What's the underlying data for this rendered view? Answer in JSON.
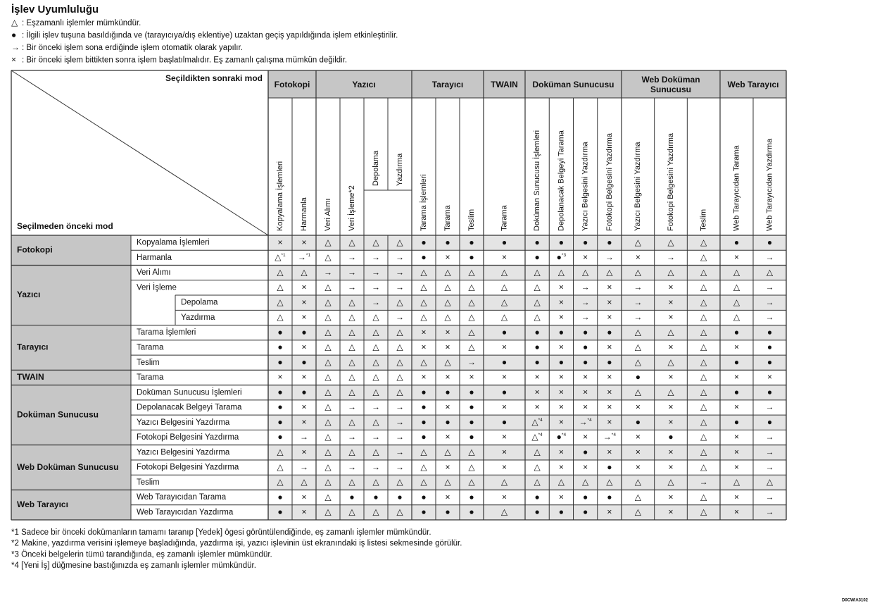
{
  "title": "İşlev Uyumluluğu",
  "legend": [
    {
      "symbol": "△",
      "text": ": Eşzamanlı işlemler mümkündür."
    },
    {
      "symbol": "●",
      "text": ": İlgili işlev tuşuna basıldığında ve (tarayıcıya/dış eklentiye) uzaktan geçiş yapıldığında işlem etkinleştirilir."
    },
    {
      "symbol": "→",
      "text": ": Bir önceki işlem sona erdiğinde işlem otomatik olarak yapılır."
    },
    {
      "symbol": "×",
      "text": ": Bir önceki işlem bittikten sonra işlem başlatılmalıdır. Eş zamanlı çalışma mümkün değildir."
    }
  ],
  "table": {
    "corner_top": "Seçildikten sonraki mod",
    "corner_bottom": "Seçilmeden önceki mod",
    "column_groups": [
      {
        "label": "Fotokopi",
        "columns": [
          "Kopyalama İşlemleri",
          "Harmanla"
        ]
      },
      {
        "label": "Yazıcı",
        "columns": [
          "Veri Alımı",
          {
            "label": "Veri İşleme*2",
            "sub": [
              "Depolama",
              "Yazdırma"
            ]
          }
        ]
      },
      {
        "label": "Tarayıcı",
        "columns": [
          "Tarama İşlemleri",
          "Tarama",
          "Teslim"
        ]
      },
      {
        "label": "TWAIN",
        "columns": [
          "Tarama"
        ]
      },
      {
        "label": "Doküman Sunucusu",
        "columns": [
          "Doküman Sunucusu İşlemleri",
          "Depolanacak Belgeyi Tarama",
          "Yazıcı Belgesini Yazdırma",
          "Fotokopi Belgesini Yazdırma"
        ]
      },
      {
        "label": "Web Doküman Sunucusu",
        "columns": [
          "Yazıcı Belgesini Yazdırma",
          "Fotokopi Belgesini Yazdırma",
          "Teslim"
        ]
      },
      {
        "label": "Web Tarayıcı",
        "columns": [
          "Web Tarayıcıdan Tarama",
          "Web Tarayıcıdan Yazdırma"
        ]
      }
    ],
    "row_groups": [
      {
        "label": "Fotokopi",
        "rows": [
          {
            "label": "Kopyalama İşlemleri",
            "cells": [
              "×",
              "×",
              "△",
              "△",
              "△",
              "△",
              "●",
              "●",
              "●",
              "●",
              "●",
              "●",
              "●",
              "●",
              "△",
              "△",
              "△",
              "●",
              "●"
            ]
          },
          {
            "label": "Harmanla",
            "cells": [
              {
                "symbol": "△",
                "note": "*1"
              },
              {
                "symbol": "→",
                "note": "*1"
              },
              "△",
              "→",
              "→",
              "→",
              "●",
              "×",
              "●",
              "×",
              "●",
              {
                "symbol": "●",
                "note": "*3"
              },
              "×",
              "→",
              "×",
              "→",
              "△",
              "×",
              "→"
            ]
          }
        ]
      },
      {
        "label": "Yazıcı",
        "rows": [
          {
            "label": "Veri Alımı",
            "cells": [
              "△",
              "△",
              "→",
              "→",
              "→",
              "→",
              "△",
              "△",
              "△",
              "△",
              "△",
              "△",
              "△",
              "△",
              "△",
              "△",
              "△",
              "△",
              "△"
            ]
          },
          {
            "label": "Veri İşleme",
            "cells": [
              "△",
              "×",
              "△",
              "→",
              "→",
              "→",
              "△",
              "△",
              "△",
              "△",
              "△",
              "×",
              "→",
              "×",
              "→",
              "×",
              "△",
              "△",
              "→"
            ],
            "sub": [
              {
                "label": "Depolama",
                "cells": [
                  "△",
                  "×",
                  "△",
                  "△",
                  "→",
                  "△",
                  "△",
                  "△",
                  "△",
                  "△",
                  "△",
                  "×",
                  "→",
                  "×",
                  "→",
                  "×",
                  "△",
                  "△",
                  "→"
                ]
              },
              {
                "label": "Yazdırma",
                "cells": [
                  "△",
                  "×",
                  "△",
                  "△",
                  "△",
                  "→",
                  "△",
                  "△",
                  "△",
                  "△",
                  "△",
                  "×",
                  "→",
                  "×",
                  "→",
                  "×",
                  "△",
                  "△",
                  "→"
                ]
              }
            ]
          }
        ]
      },
      {
        "label": "Tarayıcı",
        "rows": [
          {
            "label": "Tarama İşlemleri",
            "cells": [
              "●",
              "●",
              "△",
              "△",
              "△",
              "△",
              "×",
              "×",
              "△",
              "●",
              "●",
              "●",
              "●",
              "●",
              "△",
              "△",
              "△",
              "●",
              "●"
            ]
          },
          {
            "label": "Tarama",
            "cells": [
              "●",
              "×",
              "△",
              "△",
              "△",
              "△",
              "×",
              "×",
              "△",
              "×",
              "●",
              "×",
              "●",
              "×",
              "△",
              "×",
              "△",
              "×",
              "●"
            ]
          },
          {
            "label": "Teslim",
            "cells": [
              "●",
              "●",
              "△",
              "△",
              "△",
              "△",
              "△",
              "△",
              "→",
              "●",
              "●",
              "●",
              "●",
              "●",
              "△",
              "△",
              "△",
              "●",
              "●"
            ]
          }
        ]
      },
      {
        "label": "TWAIN",
        "rows": [
          {
            "label": "Tarama",
            "cells": [
              "×",
              "×",
              "△",
              "△",
              "△",
              "△",
              "×",
              "×",
              "×",
              "×",
              "×",
              "×",
              "×",
              "×",
              "●",
              "×",
              "△",
              "×",
              "×"
            ]
          }
        ]
      },
      {
        "label": "Doküman Sunucusu",
        "rows": [
          {
            "label": "Doküman Sunucusu İşlemleri",
            "cells": [
              "●",
              "●",
              "△",
              "△",
              "△",
              "△",
              "●",
              "●",
              "●",
              "●",
              "×",
              "×",
              "×",
              "×",
              "△",
              "△",
              "△",
              "●",
              "●"
            ]
          },
          {
            "label": "Depolanacak Belgeyi Tarama",
            "cells": [
              "●",
              "×",
              "△",
              "→",
              "→",
              "→",
              "●",
              "×",
              "●",
              "×",
              "×",
              "×",
              "×",
              "×",
              "×",
              "×",
              "△",
              "×",
              "→"
            ]
          },
          {
            "label": "Yazıcı Belgesini Yazdırma",
            "cells": [
              "●",
              "×",
              "△",
              "△",
              "△",
              "→",
              "●",
              "●",
              "●",
              "●",
              {
                "symbol": "△",
                "note": "*4"
              },
              "×",
              {
                "symbol": "→",
                "note": "*4"
              },
              "×",
              "●",
              "×",
              "△",
              "●",
              "●"
            ]
          },
          {
            "label": "Fotokopi Belgesini Yazdırma",
            "cells": [
              "●",
              "→",
              "△",
              "→",
              "→",
              "→",
              "●",
              "×",
              "●",
              "×",
              {
                "symbol": "△",
                "note": "*4"
              },
              {
                "symbol": "●",
                "note": "*4"
              },
              "×",
              {
                "symbol": "→",
                "note": "*4"
              },
              "×",
              "●",
              "△",
              "×",
              "→"
            ]
          }
        ]
      },
      {
        "label": "Web Doküman Sunucusu",
        "rows": [
          {
            "label": "Yazıcı Belgesini Yazdırma",
            "cells": [
              "△",
              "×",
              "△",
              "△",
              "△",
              "→",
              "△",
              "△",
              "△",
              "×",
              "△",
              "×",
              "●",
              "×",
              "×",
              "×",
              "△",
              "×",
              "→"
            ]
          },
          {
            "label": "Fotokopi Belgesini Yazdırma",
            "cells": [
              "△",
              "→",
              "△",
              "→",
              "→",
              "→",
              "△",
              "×",
              "△",
              "×",
              "△",
              "×",
              "×",
              "●",
              "×",
              "×",
              "△",
              "×",
              "→"
            ]
          },
          {
            "label": "Teslim",
            "cells": [
              "△",
              "△",
              "△",
              "△",
              "△",
              "△",
              "△",
              "△",
              "△",
              "△",
              "△",
              "△",
              "△",
              "△",
              "△",
              "△",
              "→",
              "△",
              "△"
            ]
          }
        ]
      },
      {
        "label": "Web Tarayıcı",
        "rows": [
          {
            "label": "Web Tarayıcıdan Tarama",
            "cells": [
              "●",
              "×",
              "△",
              "●",
              "●",
              "●",
              "●",
              "×",
              "●",
              "×",
              "●",
              "×",
              "●",
              "●",
              "△",
              "×",
              "△",
              "×",
              "→"
            ]
          },
          {
            "label": "Web Tarayıcıdan Yazdırma",
            "cells": [
              "●",
              "×",
              "△",
              "△",
              "△",
              "△",
              "●",
              "●",
              "●",
              "△",
              "●",
              "●",
              "●",
              "×",
              "△",
              "×",
              "△",
              "×",
              "→"
            ]
          }
        ]
      }
    ]
  },
  "footnotes": [
    "*1 Sadece bir önceki dokümanların tamamı taranıp [Yedek] ögesi görüntülendiğinde, eş zamanlı işlemler mümkündür.",
    "*2 Makine, yazdırma verisini işlemeye başladığında, yazdırma işi, yazıcı işlevinin üst ekranındaki iş listesi sekmesinde görülür.",
    "*3 Önceki belgelerin tümü tarandığında, eş zamanlı işlemler mümkündür.",
    "*4 [Yeni İş] düğmesine bastığınızda eş zamanlı işlemler mümkündür."
  ],
  "code": "D0CWIA3102"
}
